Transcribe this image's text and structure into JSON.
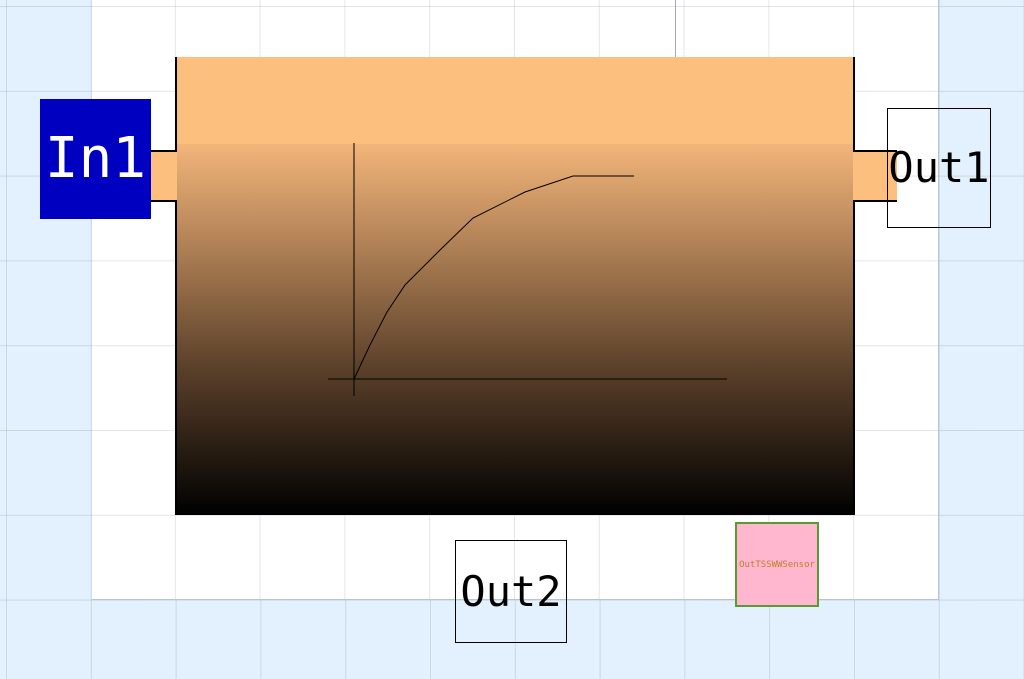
{
  "ports": {
    "in1": {
      "label": "In1"
    },
    "out1": {
      "label": "Out1"
    },
    "out2": {
      "label": "Out2"
    }
  },
  "sensor": {
    "label": "OutTSSWWSensor"
  },
  "colors": {
    "block_top": "#fdbf7e",
    "block_bottom": "#000000",
    "input_port": "#0000c0",
    "sensor_fill": "#ffb6cf",
    "sensor_border": "#5b9a2e",
    "sensor_text": "#c07f2a"
  },
  "icon": {
    "name": "saturation-curve-icon"
  }
}
